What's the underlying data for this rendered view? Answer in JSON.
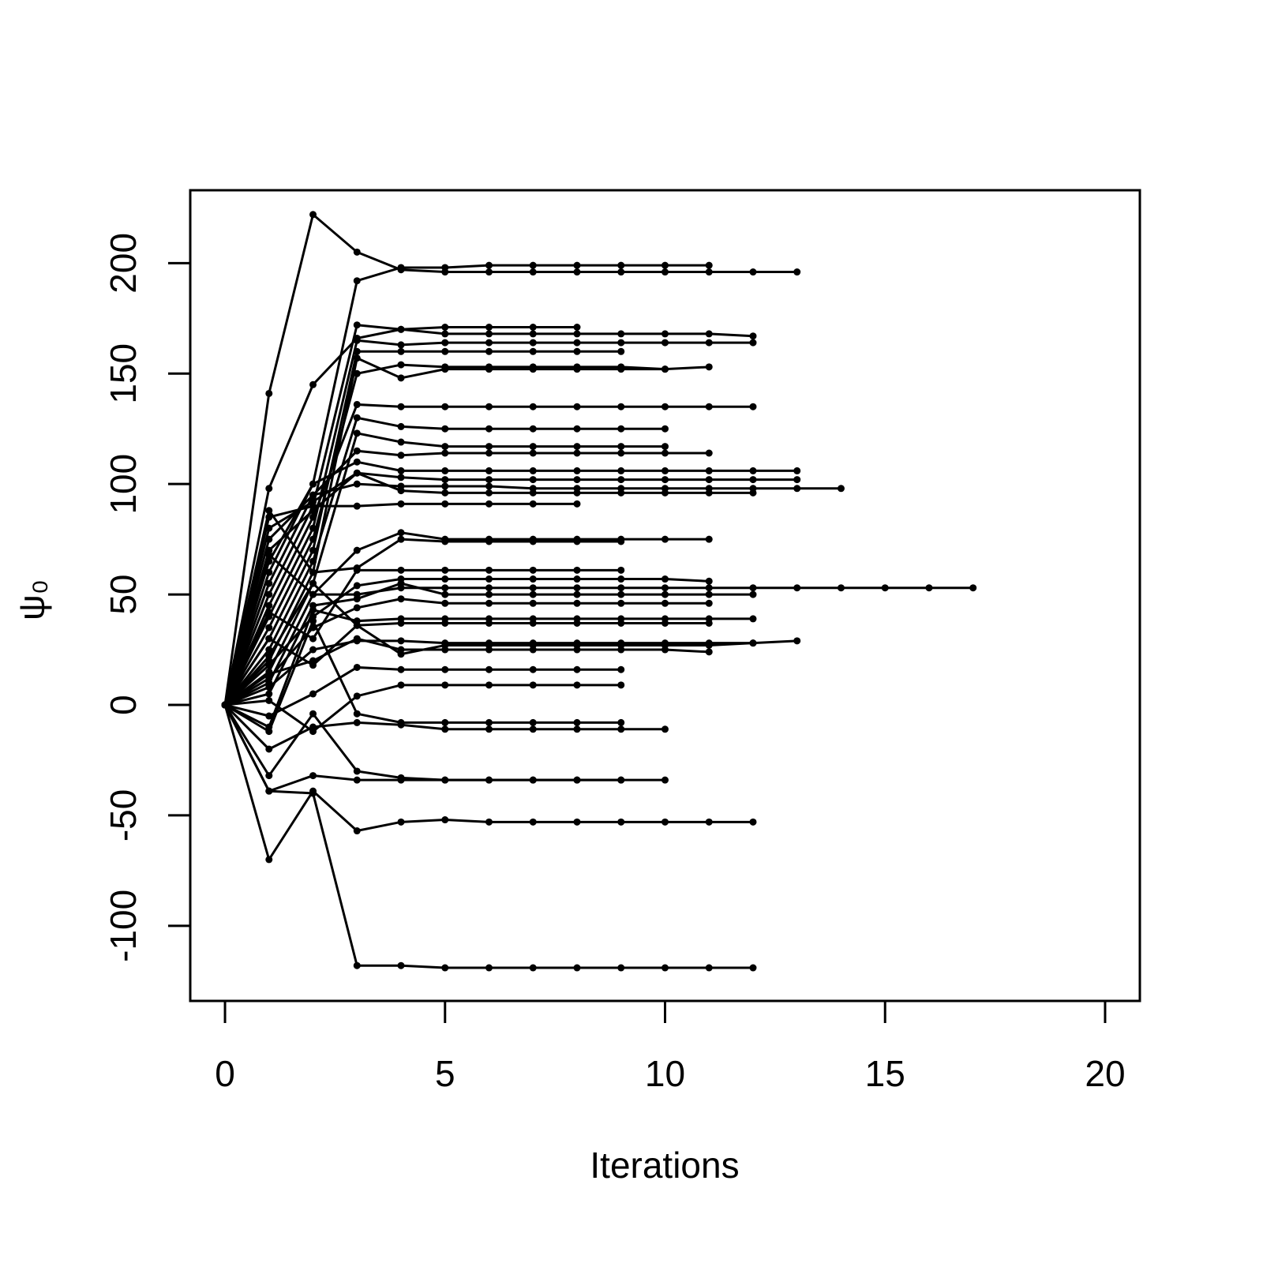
{
  "chart_data": {
    "type": "line",
    "xlabel": "Iterations",
    "ylabel": "ψ₀",
    "color": "#000000",
    "x": [
      0,
      1,
      2,
      3,
      4,
      5,
      6,
      7,
      8,
      9,
      10,
      11,
      12,
      13,
      14,
      15,
      16,
      17
    ],
    "xlim": [
      -0.79,
      20.79
    ],
    "ylim": [
      -134,
      233
    ],
    "xticks": [
      0,
      5,
      10,
      15,
      20
    ],
    "yticks": [
      -100,
      -50,
      0,
      50,
      100,
      150,
      200
    ],
    "series": [
      {
        "values": [
          0,
          141,
          222,
          205,
          197,
          196,
          196,
          196,
          196,
          196,
          196,
          196,
          196,
          196,
          null,
          null,
          null,
          null
        ]
      },
      {
        "values": [
          0,
          98,
          145,
          166,
          170,
          171,
          171,
          171,
          171,
          null,
          null,
          null,
          null,
          null,
          null,
          null,
          null,
          null
        ]
      },
      {
        "values": [
          0,
          60,
          100,
          192,
          198,
          198,
          199,
          199,
          199,
          199,
          199,
          199,
          null,
          null,
          null,
          null,
          null,
          null
        ]
      },
      {
        "values": [
          0,
          50,
          90,
          172,
          170,
          168,
          168,
          168,
          168,
          168,
          168,
          168,
          167,
          null,
          null,
          null,
          null,
          null
        ]
      },
      {
        "values": [
          0,
          40,
          80,
          165,
          163,
          164,
          164,
          164,
          164,
          164,
          164,
          164,
          164,
          null,
          null,
          null,
          null,
          null
        ]
      },
      {
        "values": [
          0,
          30,
          70,
          160,
          160,
          160,
          160,
          160,
          160,
          160,
          null,
          null,
          null,
          null,
          null,
          null,
          null,
          null
        ]
      },
      {
        "values": [
          0,
          20,
          60,
          157,
          148,
          152,
          152,
          152,
          152,
          152,
          152,
          153,
          null,
          null,
          null,
          null,
          null,
          null
        ]
      },
      {
        "values": [
          0,
          35,
          75,
          150,
          154,
          153,
          153,
          153,
          153,
          153,
          152,
          null,
          null,
          null,
          null,
          null,
          null,
          null
        ]
      },
      {
        "values": [
          0,
          45,
          85,
          136,
          135,
          135,
          135,
          135,
          135,
          135,
          135,
          135,
          135,
          null,
          null,
          null,
          null,
          null
        ]
      },
      {
        "values": [
          0,
          25,
          65,
          130,
          126,
          125,
          125,
          125,
          125,
          125,
          125,
          null,
          null,
          null,
          null,
          null,
          null,
          null
        ]
      },
      {
        "values": [
          0,
          15,
          55,
          123,
          119,
          117,
          117,
          117,
          117,
          117,
          117,
          null,
          null,
          null,
          null,
          null,
          null,
          null
        ]
      },
      {
        "values": [
          0,
          55,
          95,
          115,
          113,
          114,
          114,
          114,
          114,
          114,
          114,
          114,
          null,
          null,
          null,
          null,
          null,
          null
        ]
      },
      {
        "values": [
          0,
          65,
          100,
          110,
          106,
          106,
          106,
          106,
          106,
          106,
          106,
          106,
          106,
          106,
          null,
          null,
          null,
          null
        ]
      },
      {
        "values": [
          0,
          70,
          88,
          105,
          103,
          102,
          102,
          102,
          102,
          102,
          102,
          102,
          102,
          102,
          null,
          null,
          null,
          null
        ]
      },
      {
        "values": [
          0,
          75,
          95,
          100,
          99,
          99,
          99,
          98,
          98,
          98,
          98,
          98,
          98,
          98,
          98,
          null,
          null,
          null
        ]
      },
      {
        "values": [
          0,
          80,
          92,
          105,
          97,
          96,
          96,
          96,
          96,
          96,
          96,
          96,
          96,
          null,
          null,
          null,
          null,
          null
        ]
      },
      {
        "values": [
          0,
          85,
          90,
          90,
          91,
          91,
          91,
          91,
          91,
          null,
          null,
          null,
          null,
          null,
          null,
          null,
          null,
          null
        ]
      },
      {
        "values": [
          0,
          10,
          50,
          70,
          78,
          75,
          75,
          75,
          75,
          75,
          75,
          75,
          null,
          null,
          null,
          null,
          null,
          null
        ]
      },
      {
        "values": [
          0,
          88,
          60,
          62,
          75,
          74,
          74,
          74,
          74,
          74,
          null,
          null,
          null,
          null,
          null,
          null,
          null,
          null
        ]
      },
      {
        "values": [
          0,
          42,
          30,
          61,
          61,
          61,
          61,
          61,
          61,
          61,
          null,
          null,
          null,
          null,
          null,
          null,
          null,
          null
        ]
      },
      {
        "values": [
          0,
          18,
          40,
          54,
          57,
          57,
          57,
          57,
          57,
          57,
          57,
          56,
          null,
          null,
          null,
          null,
          null,
          null
        ]
      },
      {
        "values": [
          0,
          68,
          50,
          50,
          53,
          53,
          53,
          53,
          53,
          53,
          53,
          53,
          53,
          53,
          53,
          53,
          53,
          53
        ]
      },
      {
        "values": [
          0,
          5,
          45,
          48,
          55,
          50,
          50,
          50,
          50,
          50,
          50,
          50,
          50,
          null,
          null,
          null,
          null,
          null
        ]
      },
      {
        "values": [
          0,
          12,
          35,
          44,
          48,
          46,
          46,
          46,
          46,
          46,
          46,
          46,
          null,
          null,
          null,
          null,
          null,
          null
        ]
      },
      {
        "values": [
          0,
          -10,
          43,
          38,
          39,
          39,
          39,
          39,
          39,
          39,
          39,
          39,
          39,
          null,
          null,
          null,
          null,
          null
        ]
      },
      {
        "values": [
          0,
          22,
          55,
          36,
          37,
          37,
          37,
          37,
          37,
          37,
          37,
          37,
          null,
          null,
          null,
          null,
          null,
          null
        ]
      },
      {
        "values": [
          0,
          8,
          25,
          29,
          29,
          28,
          28,
          28,
          28,
          28,
          28,
          28,
          28,
          29,
          null,
          null,
          null,
          null
        ]
      },
      {
        "values": [
          0,
          30,
          18,
          36,
          23,
          27,
          27,
          27,
          27,
          27,
          27,
          27,
          28,
          null,
          null,
          null,
          null,
          null
        ]
      },
      {
        "values": [
          0,
          14,
          20,
          30,
          25,
          25,
          25,
          25,
          25,
          25,
          25,
          24,
          null,
          null,
          null,
          null,
          null,
          null
        ]
      },
      {
        "values": [
          0,
          -5,
          5,
          17,
          16,
          16,
          16,
          16,
          16,
          16,
          null,
          null,
          null,
          null,
          null,
          null,
          null,
          null
        ]
      },
      {
        "values": [
          0,
          2,
          -12,
          4,
          9,
          9,
          9,
          9,
          9,
          9,
          null,
          null,
          null,
          null,
          null,
          null,
          null,
          null
        ]
      },
      {
        "values": [
          0,
          -12,
          38,
          -4,
          -8,
          -8,
          -8,
          -8,
          -8,
          -8,
          null,
          null,
          null,
          null,
          null,
          null,
          null,
          null
        ]
      },
      {
        "values": [
          0,
          -20,
          -10,
          -8,
          -9,
          -11,
          -11,
          -11,
          -11,
          -11,
          -11,
          null,
          null,
          null,
          null,
          null,
          null,
          null
        ]
      },
      {
        "values": [
          0,
          -32,
          -4,
          -30,
          -33,
          -34,
          -34,
          -34,
          -34,
          -34,
          -34,
          null,
          null,
          null,
          null,
          null,
          null,
          null
        ]
      },
      {
        "values": [
          0,
          -39,
          -32,
          -34,
          -34,
          -34,
          -34,
          -34,
          -34,
          -34,
          null,
          null,
          null,
          null,
          null,
          null,
          null,
          null
        ]
      },
      {
        "values": [
          0,
          -70,
          -39,
          -57,
          -53,
          -52,
          -53,
          -53,
          -53,
          -53,
          -53,
          -53,
          -53,
          null,
          null,
          null,
          null,
          null
        ]
      },
      {
        "values": [
          0,
          -39,
          -40,
          -118,
          -118,
          -119,
          -119,
          -119,
          -119,
          -119,
          -119,
          -119,
          -119,
          null,
          null,
          null,
          null,
          null
        ]
      }
    ]
  }
}
